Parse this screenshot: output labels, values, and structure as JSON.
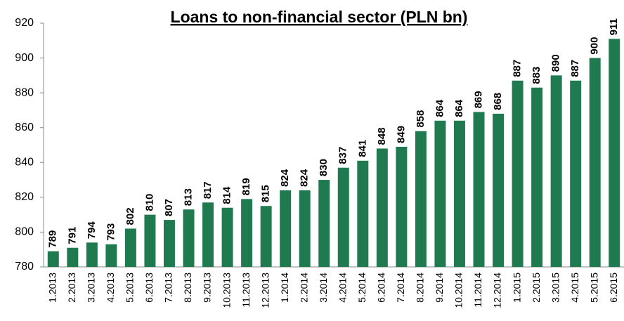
{
  "chart_data": {
    "type": "bar",
    "title": "Loans to non-financial sector (PLN bn)",
    "categories": [
      "1.2013",
      "2.2013",
      "3.2013",
      "4.2013",
      "5.2013",
      "6.2013",
      "7.2013",
      "8.2013",
      "9.2013",
      "10.2013",
      "11.2013",
      "12.2013",
      "1.2014",
      "2.2014",
      "3.2014",
      "4.2014",
      "5.2014",
      "6.2014",
      "7.2014",
      "8.2014",
      "9.2014",
      "10.2014",
      "11.2014",
      "12.2014",
      "1.2015",
      "2.2015",
      "3.2015",
      "4.2015",
      "5.2015",
      "6.2015"
    ],
    "values": [
      789,
      791,
      794,
      793,
      802,
      810,
      807,
      813,
      817,
      814,
      819,
      815,
      824,
      824,
      830,
      837,
      841,
      848,
      849,
      858,
      864,
      864,
      869,
      868,
      887,
      883,
      890,
      887,
      900,
      911
    ],
    "color": "#1f7a4f",
    "ylim": [
      780,
      920
    ],
    "yticks": [
      780,
      800,
      820,
      840,
      860,
      880,
      900,
      920
    ],
    "grid": false
  }
}
